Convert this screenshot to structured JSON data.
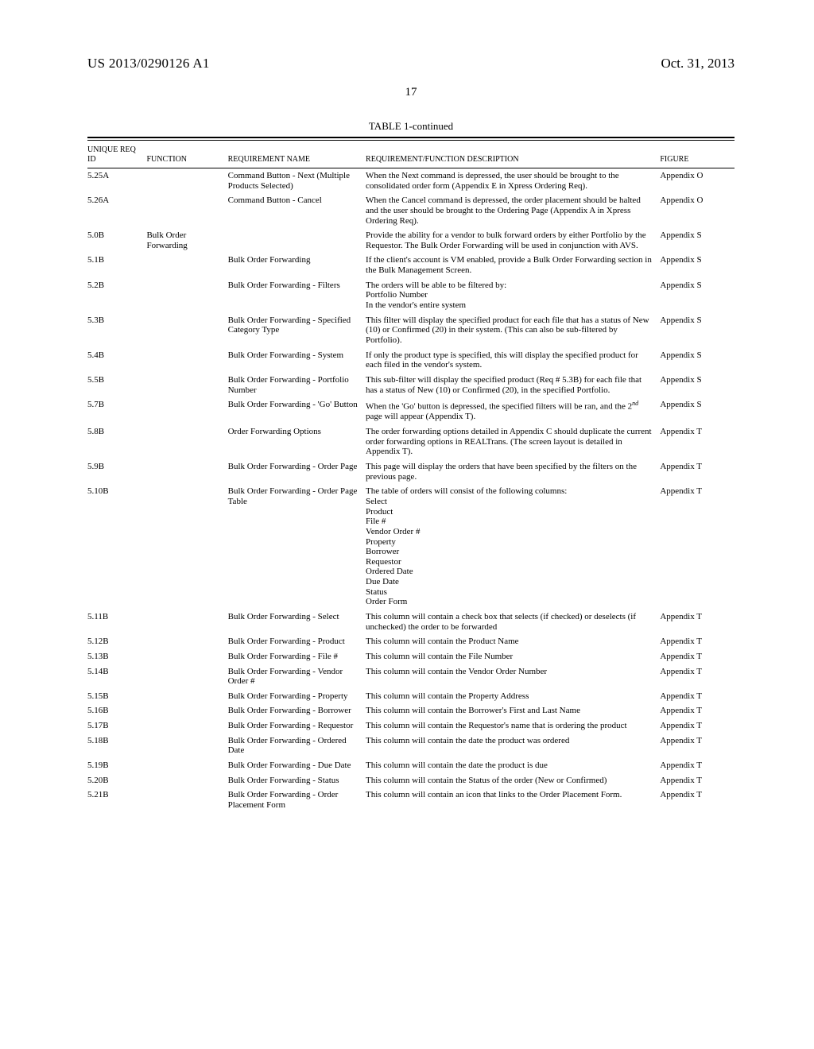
{
  "doc": {
    "pub_no": "US 2013/0290126 A1",
    "pub_date": "Oct. 31, 2013",
    "page_no": "17",
    "table_title": "TABLE 1-continued"
  },
  "columns": {
    "id": "UNIQUE\nREQ ID",
    "func": "FUNCTION",
    "rname": "REQUIREMENT\nNAME",
    "desc": "REQUIREMENT/FUNCTION DESCRIPTION",
    "fig": "FIGURE"
  },
  "rows": [
    {
      "id": "5.25A",
      "func": "",
      "rname": "Command Button - Next (Multiple Products Selected)",
      "desc": "When the Next command is depressed, the user should be brought to the consolidated order form (Appendix E in Xpress Ordering Req).",
      "fig": "Appendix O"
    },
    {
      "id": "5.26A",
      "func": "",
      "rname": "Command Button - Cancel",
      "desc": "When the Cancel command is depressed, the order placement should be halted and the user should be brought to the Ordering Page (Appendix A in Xpress Ordering Req).",
      "fig": "Appendix O"
    },
    {
      "id": "5.0B",
      "func": "Bulk Order Forwarding",
      "rname": "",
      "desc": "Provide the ability for a vendor to bulk forward orders by either Portfolio by the Requestor. The Bulk Order Forwarding will be used in conjunction with AVS.",
      "fig": "Appendix S"
    },
    {
      "id": "5.1B",
      "func": "",
      "rname": "Bulk Order Forwarding",
      "desc": "If the client's account is VM enabled, provide a Bulk Order Forwarding section in the Bulk Management Screen.",
      "fig": "Appendix S"
    },
    {
      "id": "5.2B",
      "func": "",
      "rname": "Bulk Order Forwarding - Filters",
      "desc": "The orders will be able to be filtered by:\nPortfolio Number\nIn the vendor's entire system",
      "fig": "Appendix S"
    },
    {
      "id": "5.3B",
      "func": "",
      "rname": "Bulk Order Forwarding - Specified Category Type",
      "desc": "This filter will display the specified product for each file that has a status of New (10) or Confirmed (20) in their system. (This can also be sub-filtered by Portfolio).",
      "fig": "Appendix S"
    },
    {
      "id": "5.4B",
      "func": "",
      "rname": "Bulk Order Forwarding - System",
      "desc": "If only the product type is specified, this will display the specified product for each filed in the vendor's system.",
      "fig": "Appendix S"
    },
    {
      "id": "5.5B",
      "func": "",
      "rname": "Bulk Order Forwarding - Portfolio Number",
      "desc": "This sub-filter will display the specified product (Req # 5.3B) for each file that has a status of New (10) or Confirmed (20), in the specified Portfolio.",
      "fig": "Appendix S"
    },
    {
      "id": "5.7B",
      "func": "",
      "rname": "Bulk Order Forwarding - 'Go' Button",
      "desc": "When the 'Go' button is depressed, the specified filters will be ran, and the 2<sup>nd</sup> page will appear (Appendix T).",
      "fig": "Appendix S",
      "html": true
    },
    {
      "id": "5.8B",
      "func": "",
      "rname": "Order Forwarding Options",
      "desc": "The order forwarding options detailed in Appendix C should duplicate the current order forwarding options in REALTrans. (The screen layout is detailed in Appendix T).",
      "fig": "Appendix T"
    },
    {
      "id": "5.9B",
      "func": "",
      "rname": "Bulk Order Forwarding - Order Page",
      "desc": "This page will display the orders that have been specified by the filters on the previous page.",
      "fig": "Appendix T"
    },
    {
      "id": "5.10B",
      "func": "",
      "rname": "Bulk Order Forwarding - Order Page Table",
      "desc": "The table of orders will consist of the following columns:\nSelect\nProduct\nFile #\nVendor Order #\nProperty\nBorrower\nRequestor\nOrdered Date\nDue Date\nStatus\nOrder Form",
      "fig": "Appendix T"
    },
    {
      "id": "5.11B",
      "func": "",
      "rname": "Bulk Order Forwarding - Select",
      "desc": "This column will contain a check box that selects (if checked) or deselects (if unchecked) the order to be forwarded",
      "fig": "Appendix T"
    },
    {
      "id": "5.12B",
      "func": "",
      "rname": "Bulk Order Forwarding - Product",
      "desc": "This column will contain the Product Name",
      "fig": "Appendix T"
    },
    {
      "id": "5.13B",
      "func": "",
      "rname": "Bulk Order Forwarding - File #",
      "desc": "This column will contain the File Number",
      "fig": "Appendix T"
    },
    {
      "id": "5.14B",
      "func": "",
      "rname": "Bulk Order Forwarding - Vendor Order #",
      "desc": "This column will contain the Vendor Order Number",
      "fig": "Appendix T"
    },
    {
      "id": "5.15B",
      "func": "",
      "rname": "Bulk Order Forwarding - Property",
      "desc": "This column will contain the Property Address",
      "fig": "Appendix T"
    },
    {
      "id": "5.16B",
      "func": "",
      "rname": "Bulk Order Forwarding - Borrower",
      "desc": "This column will contain the Borrower's First and Last Name",
      "fig": "Appendix T"
    },
    {
      "id": "5.17B",
      "func": "",
      "rname": "Bulk Order Forwarding - Requestor",
      "desc": "This column will contain the Requestor's name that is ordering the product",
      "fig": "Appendix T"
    },
    {
      "id": "5.18B",
      "func": "",
      "rname": "Bulk Order Forwarding - Ordered Date",
      "desc": "This column will contain the date the product was ordered",
      "fig": "Appendix T"
    },
    {
      "id": "5.19B",
      "func": "",
      "rname": "Bulk Order Forwarding - Due Date",
      "desc": "This column will contain the date the product is due",
      "fig": "Appendix T"
    },
    {
      "id": "5.20B",
      "func": "",
      "rname": "Bulk Order Forwarding - Status",
      "desc": "This column will contain the Status of the order (New or Confirmed)",
      "fig": "Appendix T"
    },
    {
      "id": "5.21B",
      "func": "",
      "rname": "Bulk Order Forwarding - Order Placement Form",
      "desc": "This column will contain an icon that links to the Order Placement Form.",
      "fig": "Appendix T"
    }
  ]
}
